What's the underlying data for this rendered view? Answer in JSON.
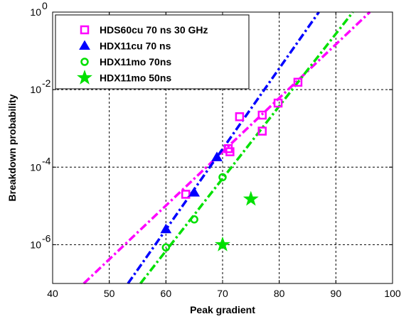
{
  "chart_data": {
    "type": "scatter",
    "xlabel": "Peak gradient",
    "ylabel": "Breakdown probability",
    "xlim": [
      40,
      100
    ],
    "ylim_log10": [
      -7,
      0
    ],
    "y_scale": "log",
    "grid": true,
    "legend_position": "top-left",
    "x_ticks": [
      {
        "value": 40,
        "label": "40"
      },
      {
        "value": 50,
        "label": "50"
      },
      {
        "value": 60,
        "label": "60"
      },
      {
        "value": 70,
        "label": "70"
      },
      {
        "value": 80,
        "label": "80"
      },
      {
        "value": 90,
        "label": "90"
      },
      {
        "value": 100,
        "label": "100"
      }
    ],
    "y_ticks": [
      {
        "exp": -6,
        "base": "10",
        "sup": "-6"
      },
      {
        "exp": -4,
        "base": "10",
        "sup": "-4"
      },
      {
        "exp": -2,
        "base": "10",
        "sup": "-2"
      },
      {
        "exp": 0,
        "base": "10",
        "sup": "0"
      }
    ],
    "series": [
      {
        "name": "HDS60cu 70 ns 30 GHz",
        "color": "#ff00ff",
        "marker": "square",
        "x": [
          63.5,
          71,
          71.3,
          73,
          77,
          77,
          79.8,
          83.3
        ],
        "y": [
          2e-05,
          0.0003,
          0.00025,
          0.002,
          0.0022,
          0.00085,
          0.0045,
          0.0155
        ],
        "fit_line": {
          "x": [
            45.5,
            96
          ],
          "y": [
            1e-07,
            1
          ]
        }
      },
      {
        "name": "HDX11cu 70 ns",
        "color": "#0000ff",
        "marker": "triangle",
        "x": [
          60,
          65,
          69
        ],
        "y": [
          2.5e-06,
          2.2e-05,
          0.00018
        ],
        "fit_line": {
          "x": [
            53.3,
            87
          ],
          "y": [
            1e-07,
            1
          ]
        }
      },
      {
        "name": "HDX11mo 70ns",
        "color": "#00e000",
        "marker": "circle",
        "x": [
          60,
          65,
          70
        ],
        "y": [
          8.5e-07,
          4.5e-06,
          5.5e-05
        ],
        "fit_line": {
          "x": [
            55.5,
            93
          ],
          "y": [
            1e-07,
            1
          ]
        }
      },
      {
        "name": "HDX11mo 50ns",
        "color": "#00e000",
        "marker": "star",
        "x": [
          70,
          75
        ],
        "y": [
          1e-06,
          1.5e-05
        ]
      }
    ]
  }
}
